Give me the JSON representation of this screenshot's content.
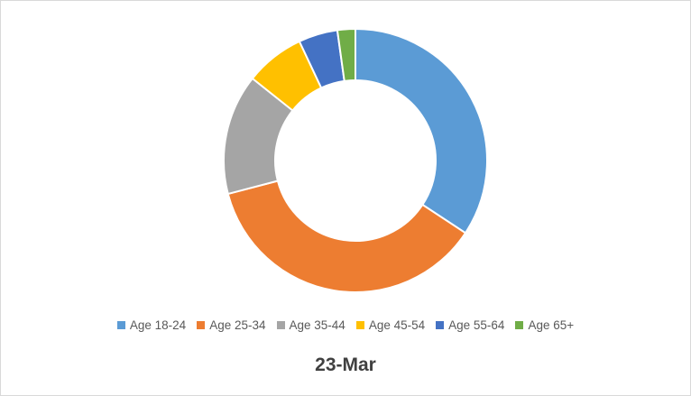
{
  "chart_data": {
    "type": "pie",
    "variant": "doughnut",
    "title": "23-Mar",
    "legend_position": "bottom",
    "categories": [
      "Age 18-24",
      "Age 25-34",
      "Age 35-44",
      "Age 45-54",
      "Age 55-64",
      "Age 65+"
    ],
    "values": [
      34.3,
      36.7,
      14.8,
      7.3,
      4.8,
      2.2
    ],
    "colors": [
      "#5b9bd5",
      "#ed7d31",
      "#a5a5a5",
      "#ffc000",
      "#4472c4",
      "#70ad47"
    ]
  }
}
